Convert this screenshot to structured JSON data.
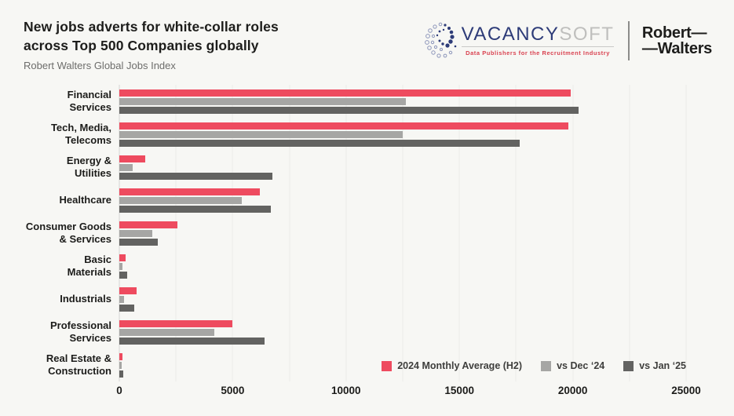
{
  "header": {
    "title_line1": "New jobs adverts for white-collar roles",
    "title_line2": "across Top 500 Companies globally",
    "subtitle": "Robert Walters Global Jobs Index"
  },
  "logos": {
    "vacancysoft": {
      "name_primary": "VACANCY",
      "name_secondary": "SOFT",
      "tagline": "Data Publishers for the Recruitment Industry",
      "navy": "#2d3b78",
      "gray": "#bfbfbd",
      "tagline_color": "#d9414f"
    },
    "robert_walters": {
      "line1": "Robert—",
      "line2": "—Walters"
    }
  },
  "chart_data": {
    "type": "bar",
    "orientation": "horizontal",
    "title": "New jobs adverts for white-collar roles across Top 500 Companies globally",
    "subtitle": "Robert Walters Global Jobs Index",
    "categories": [
      "Financial Services",
      "Tech, Media, Telecoms",
      "Energy & Utilities",
      "Healthcare",
      "Consumer Goods & Services",
      "Basic Materials",
      "Industrials",
      "Professional Services",
      "Real Estate & Construction"
    ],
    "category_labels": [
      "Financial\nServices",
      "Tech, Media,\nTelecoms",
      "Energy &\nUtilities",
      "Healthcare",
      "Consumer Goods\n& Services",
      "Basic\nMaterials",
      "Industrials",
      "Professional\nServices",
      "Real Estate &\nConstruction"
    ],
    "series": [
      {
        "name": "2024 Monthly Average (H2)",
        "color": "#ee4b5f",
        "values": [
          19900,
          19800,
          1150,
          6200,
          2550,
          280,
          750,
          5000,
          150
        ]
      },
      {
        "name": "vs Dec ‘24",
        "color": "#a6a6a4",
        "values": [
          12650,
          12500,
          600,
          5400,
          1450,
          140,
          200,
          4200,
          90
        ]
      },
      {
        "name": "vs Jan ‘25",
        "color": "#636361",
        "values": [
          20250,
          17650,
          6750,
          6700,
          1700,
          350,
          650,
          6400,
          170
        ]
      }
    ],
    "xlabel": "",
    "ylabel": "",
    "xlim": [
      0,
      25000
    ],
    "x_ticks": [
      0,
      5000,
      10000,
      15000,
      20000,
      25000
    ],
    "grid_interval": 2500,
    "grid": true,
    "legend_position": "bottom-right"
  }
}
